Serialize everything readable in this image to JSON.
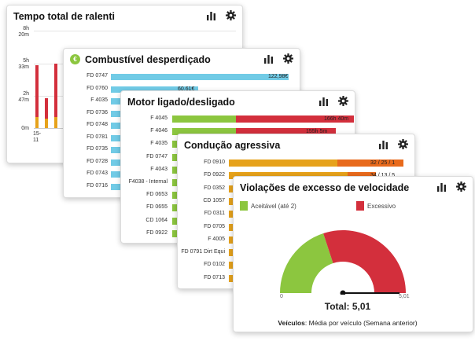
{
  "colors": {
    "cyan": "#71cbe6",
    "green": "#8cc63f",
    "red": "#d32f3c",
    "orange": "#e6a21b",
    "dark_orange": "#e86a1c"
  },
  "icons": [
    "bar-chart-icon",
    "gear-icon",
    "euro-icon"
  ],
  "idle_card": {
    "title": "Tempo total de ralenti",
    "y_ticks": [
      "8h\n20m",
      "5h\n33m",
      "2h\n47m",
      "0m"
    ],
    "x_tick": "15-\n11"
  },
  "fuel_card": {
    "title": "Combustível desperdiçado",
    "rows": [
      {
        "label": "FD 0747",
        "value": "122,98€",
        "fraction": 1.0
      },
      {
        "label": "FD 0760",
        "value": "60,61€",
        "fraction": 0.49
      },
      {
        "label": "F 4035",
        "value": "",
        "fraction": 0.42
      },
      {
        "label": "FD 0736",
        "value": "",
        "fraction": 0.36
      },
      {
        "label": "FD 0748",
        "value": "",
        "fraction": 0.32
      },
      {
        "label": "FD 0781",
        "value": "",
        "fraction": 0.28
      },
      {
        "label": "FD 0735",
        "value": "",
        "fraction": 0.25
      },
      {
        "label": "FD 0728",
        "value": "",
        "fraction": 0.22
      },
      {
        "label": "FD 0743",
        "value": "",
        "fraction": 0.2
      },
      {
        "label": "FD 0716",
        "value": "",
        "fraction": 0.18
      }
    ]
  },
  "engine_card": {
    "title": "Motor ligado/desligado",
    "rows": [
      {
        "label": "F 4045",
        "value": "166h 40m",
        "on": 0.35,
        "off": 0.65
      },
      {
        "label": "F 4046",
        "value": "155h 5m",
        "on": 0.35,
        "off": 0.55
      },
      {
        "label": "F 4035",
        "value": "",
        "on": 0.3,
        "off": 0.5
      },
      {
        "label": "FD 0747",
        "value": "",
        "on": 0.28,
        "off": 0.45
      },
      {
        "label": "F 4043",
        "value": "",
        "on": 0.26,
        "off": 0.42
      },
      {
        "label": "F4038 - Internal",
        "value": "",
        "on": 0.25,
        "off": 0.4
      },
      {
        "label": "FD 0653",
        "value": "",
        "on": 0.24,
        "off": 0.38
      },
      {
        "label": "FD 0655",
        "value": "",
        "on": 0.23,
        "off": 0.36
      },
      {
        "label": "CD 1064",
        "value": "",
        "on": 0.22,
        "off": 0.34
      },
      {
        "label": "FD 0922",
        "value": "",
        "on": 0.21,
        "off": 0.32
      }
    ]
  },
  "aggressive_card": {
    "title": "Condução agressiva",
    "rows": [
      {
        "label": "FD 0910",
        "value": "32 / 25 / 1",
        "a": 0.62,
        "b": 0.38
      },
      {
        "label": "FD 0922",
        "value": "34 / 13 / 5",
        "a": 0.68,
        "b": 0.16
      },
      {
        "label": "FD 0352",
        "value": "",
        "a": 0.6,
        "b": 0.1
      },
      {
        "label": "CD 1057",
        "value": "",
        "a": 0.55,
        "b": 0.1
      },
      {
        "label": "FD 0311",
        "value": "",
        "a": 0.52,
        "b": 0.08
      },
      {
        "label": "FD 0705",
        "value": "",
        "a": 0.5,
        "b": 0.08
      },
      {
        "label": "F 4005",
        "value": "",
        "a": 0.48,
        "b": 0.06
      },
      {
        "label": "FD 0791 Dirt Equi",
        "value": "",
        "a": 0.46,
        "b": 0.06
      },
      {
        "label": "FD 0102",
        "value": "",
        "a": 0.44,
        "b": 0.05
      },
      {
        "label": "FD 0713",
        "value": "",
        "a": 0.42,
        "b": 0.05
      }
    ]
  },
  "speed_card": {
    "title": "Violações de excesso de velocidade",
    "legend_acceptable": "Aceitável (até 2)",
    "legend_excessive": "Excessivo",
    "gauge_min": "0",
    "gauge_max": "5,01",
    "acceptable_limit": 2,
    "total_value": 5.01,
    "total_text": "Total: 5,01",
    "footer_bold": "Veículos",
    "footer_rest": ": Média por veículo (Semana anterior)"
  }
}
